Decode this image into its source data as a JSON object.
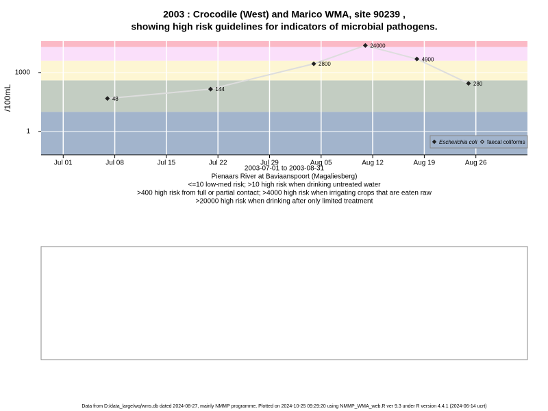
{
  "chart_data": {
    "type": "line",
    "title": "2003 : Crocodile (West) and Marico WMA, site 90239 ,",
    "title2": "showing high risk guidelines for indicators of microbial pathogens.",
    "y_label": "/100mL",
    "x_label": "2003-07-01 to 2003-08-31",
    "subtitle_lines": [
      "Pienaars River at Baviaanspoort (Magaliesberg)",
      "<=10 low-med risk; >10 high risk when drinking untreated water",
      ">400 high risk from full or partial contact; >4000 high risk when irrigating crops that are eaten raw",
      ">20000 high risk when drinking after only limited treatment"
    ],
    "footer": "Data from D:/data_large/wq/wms.db dated 2024-08-27, mainly NMMP programme. Plotted on 2024-10-25 09:29:20 using NMMP_WMA_web.R ver 9.3 under R version 4.4.1 (2024-06-14 ucrt)",
    "log_y": true,
    "grid": true,
    "x": [
      "2003-07-07",
      "2003-07-21",
      "2003-08-04",
      "2003-08-11",
      "2003-08-18",
      "2003-08-25"
    ],
    "series": [
      {
        "name": "Escherichia coli",
        "color": "#222222",
        "line_color": "#dddddd",
        "values": [
          48,
          144,
          2800,
          24000,
          4900,
          280
        ]
      },
      {
        "name": "faecal coliforms",
        "color": "#222222",
        "values": [
          null,
          null,
          null,
          null,
          null,
          null
        ]
      }
    ],
    "thresholds": [
      10,
      400,
      4000,
      20000
    ],
    "band_colors": [
      "#a2b4cc",
      "#c3cdc2",
      "#fdf6d3",
      "#fadffa",
      "#fbb9c6"
    ],
    "xlim": [
      "2003-06-28",
      "2003-09-02"
    ],
    "ylim": [
      0.065,
      40000
    ],
    "yticks": [
      1,
      1000
    ],
    "xticks": [
      {
        "value": "2003-07-01",
        "label": "Jul 01"
      },
      {
        "value": "2003-07-08",
        "label": "Jul 08"
      },
      {
        "value": "2003-07-15",
        "label": "Jul 15"
      },
      {
        "value": "2003-07-22",
        "label": "Jul 22"
      },
      {
        "value": "2003-07-29",
        "label": "Jul 29"
      },
      {
        "value": "2003-08-05",
        "label": "Aug 05"
      },
      {
        "value": "2003-08-12",
        "label": "Aug 12"
      },
      {
        "value": "2003-08-19",
        "label": "Aug 19"
      },
      {
        "value": "2003-08-26",
        "label": "Aug 26"
      }
    ],
    "legend": "bottom-right"
  }
}
